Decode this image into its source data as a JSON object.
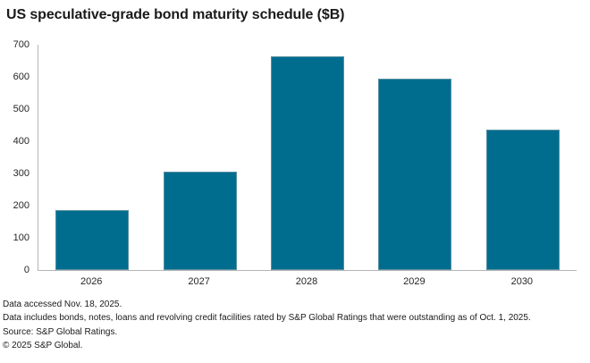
{
  "title": "US speculative-grade bond maturity schedule ($B)",
  "colors": {
    "bar": "#006d8f",
    "axis": "#b5b5b5",
    "text": "#1a1a1a"
  },
  "chart_data": {
    "type": "bar",
    "title": "US speculative-grade bond maturity schedule ($B)",
    "categories": [
      "2026",
      "2027",
      "2028",
      "2029",
      "2030"
    ],
    "values": [
      185,
      305,
      665,
      595,
      435
    ],
    "xlabel": "",
    "ylabel": "",
    "ylim": [
      0,
      700
    ],
    "yticks": [
      0,
      100,
      200,
      300,
      400,
      500,
      600,
      700
    ],
    "grid": false,
    "legend": "none"
  },
  "footer": {
    "lines": [
      "Data accessed Nov. 18, 2025.",
      "Data includes bonds, notes, loans and revolving credit facilities rated by S&P Global Ratings that were outstanding as of Oct. 1, 2025.",
      "Source: S&P Global Ratings.",
      "© 2025 S&P Global."
    ]
  }
}
